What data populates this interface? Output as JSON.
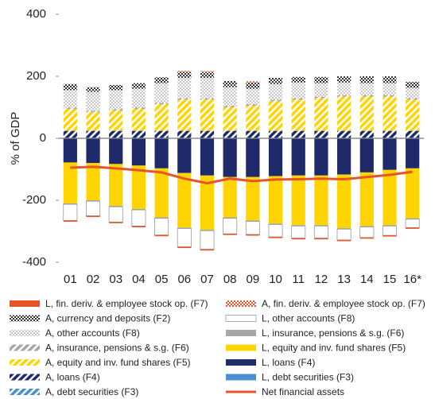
{
  "chart_data": {
    "type": "bar",
    "stacked": true,
    "y_label": "% of GDP",
    "categories": [
      "01",
      "02",
      "03",
      "04",
      "05",
      "06",
      "07",
      "08",
      "09",
      "10",
      "11",
      "12",
      "13",
      "14",
      "15",
      "16*"
    ],
    "ylim": [
      -400,
      400
    ],
    "yticks": [
      400,
      200,
      0,
      -200,
      -400
    ],
    "grid": false,
    "series": [
      {
        "name": "L, fin. deriv. & employee stock op. (F7)",
        "color": "#e8532a",
        "pattern": "solid",
        "values": [
          -4,
          -4,
          -4,
          -4,
          -4,
          -4,
          -4,
          -4,
          -4,
          -4,
          -4,
          -4,
          -4,
          -4,
          -4,
          -4
        ]
      },
      {
        "name": "A, fin. deriv. & employee stock op. (F7)",
        "color": "#e8532a",
        "pattern": "checker",
        "values": [
          0,
          0,
          0,
          0,
          0,
          5,
          5,
          0,
          4,
          0,
          0,
          0,
          0,
          0,
          0,
          0
        ]
      },
      {
        "name": "A, currency and deposits (F2)",
        "color": "#333333",
        "pattern": "checker",
        "values": [
          20,
          15,
          17,
          18,
          19,
          18,
          17,
          20,
          20,
          20,
          18,
          20,
          20,
          22,
          22,
          19
        ]
      },
      {
        "name": "L, other accounts (F8)",
        "color": "#ffffff",
        "pattern": "outline",
        "values": [
          -52,
          -47,
          -49,
          -52,
          -54,
          -59,
          -60,
          -50,
          -42,
          -40,
          -39,
          -39,
          -35,
          -34,
          -30,
          -27
        ]
      },
      {
        "name": "A, other accounts (F8)",
        "color": "#a0a0a0",
        "pattern": "dots",
        "values": [
          56,
          61,
          61,
          61,
          64,
          66,
          66,
          61,
          51,
          51,
          51,
          44,
          41,
          39,
          39,
          34
        ]
      },
      {
        "name": "L, insurance, pensions & s.g. (F6)",
        "color": "#a6a6a6",
        "pattern": "solid",
        "values": [
          -3,
          -3,
          -3,
          -3,
          -3,
          -3,
          -3,
          -3,
          -3,
          -3,
          -3,
          -3,
          -3,
          -3,
          -3,
          -3
        ]
      },
      {
        "name": "A, insurance, pensions & s.g. (F6)",
        "color": "#a6a6a6",
        "pattern": "hatch",
        "values": [
          4,
          4,
          4,
          4,
          4,
          4,
          4,
          4,
          4,
          4,
          4,
          4,
          4,
          4,
          4,
          4
        ]
      },
      {
        "name": "L, equity and inv. fund shares (F5)",
        "color": "#ffd400",
        "pattern": "solid",
        "values": [
          -132,
          -120,
          -135,
          -140,
          -158,
          -176,
          -175,
          -130,
          -140,
          -153,
          -160,
          -160,
          -173,
          -173,
          -178,
          -161
        ]
      },
      {
        "name": "A, equity and inv. fund shares (F5)",
        "color": "#ffd400",
        "pattern": "hatch",
        "values": [
          71,
          61,
          66,
          71,
          86,
          101,
          101,
          76,
          81,
          96,
          101,
          106,
          111,
          111,
          111,
          101
        ]
      },
      {
        "name": "L, loans (F4)",
        "color": "#1f2a6b",
        "pattern": "solid",
        "values": [
          -76,
          -78,
          -81,
          -86,
          -95,
          -110,
          -118,
          -123,
          -123,
          -120,
          -118,
          -118,
          -115,
          -108,
          -100,
          -95
        ]
      },
      {
        "name": "A, loans (F4)",
        "color": "#1f2a6b",
        "pattern": "hatch",
        "values": [
          22,
          22,
          22,
          22,
          22,
          22,
          22,
          22,
          22,
          22,
          22,
          22,
          22,
          22,
          22,
          22
        ]
      },
      {
        "name": "L, debt securities (F3)",
        "color": "#4a90d0",
        "pattern": "solid",
        "values": [
          -2,
          -2,
          -2,
          -2,
          -2,
          -2,
          -2,
          -2,
          -2,
          -2,
          -2,
          -2,
          -2,
          -2,
          -2,
          -2
        ]
      },
      {
        "name": "A, debt securities (F3)",
        "color": "#4a90d0",
        "pattern": "hatch",
        "values": [
          2,
          2,
          2,
          2,
          2,
          2,
          2,
          2,
          2,
          2,
          2,
          2,
          2,
          2,
          2,
          2
        ]
      },
      {
        "name": "Net financial assets",
        "type": "line",
        "color": "#e8532a",
        "values": [
          -95,
          -92,
          -97,
          -103,
          -110,
          -130,
          -145,
          -130,
          -138,
          -133,
          -132,
          -130,
          -132,
          -125,
          -118,
          -108
        ]
      }
    ]
  }
}
